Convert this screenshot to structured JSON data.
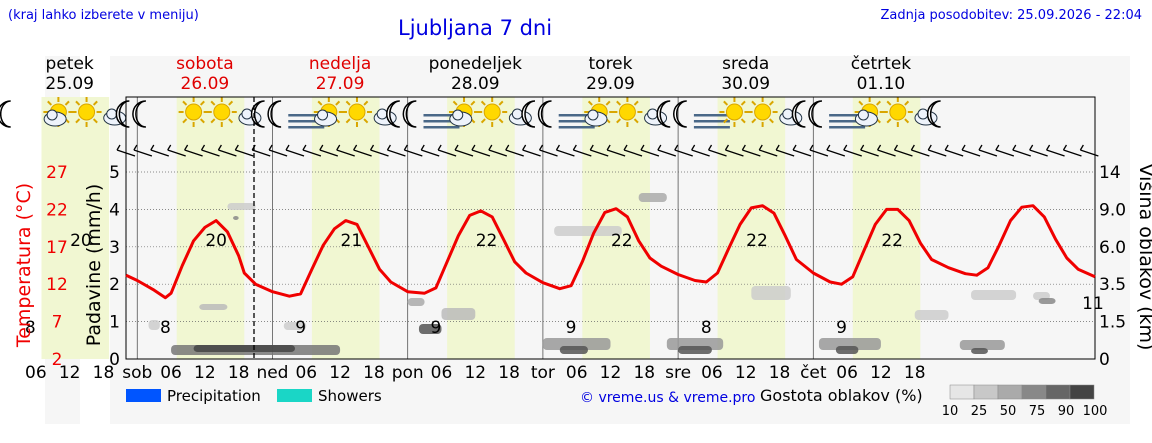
{
  "header": {
    "hint": "(kraj lahko izberete v meniju)",
    "title": "Ljubljana 7 dni",
    "updated": "Zadnja posodobitev: 25.09.2026 - 22:04"
  },
  "days": [
    {
      "name": "petek",
      "date": "25.09",
      "color": "#000000",
      "short": "",
      "tmin": "8",
      "tmax": "20"
    },
    {
      "name": "sobota",
      "date": "26.09",
      "color": "#e00000",
      "short": "sob",
      "tmin": "8",
      "tmax": "20"
    },
    {
      "name": "nedelja",
      "date": "27.09",
      "color": "#e00000",
      "short": "ned",
      "tmin": "9",
      "tmax": "21"
    },
    {
      "name": "ponedeljek",
      "date": "28.09",
      "color": "#000000",
      "short": "pon",
      "tmin": "9",
      "tmax": "22"
    },
    {
      "name": "torek",
      "date": "29.09",
      "color": "#000000",
      "short": "tor",
      "tmin": "9",
      "tmax": "22"
    },
    {
      "name": "sreda",
      "date": "30.09",
      "color": "#000000",
      "short": "sre",
      "tmin": "8",
      "tmax": "22"
    },
    {
      "name": "četrtek",
      "date": "01.10",
      "color": "#000000",
      "short": "čet",
      "tmin": "9",
      "tmax": "22"
    }
  ],
  "end_label": "11",
  "hour_labels": [
    "06",
    "12",
    "18"
  ],
  "legend": {
    "precip": "Precipitation",
    "showers": "Showers",
    "precip_color": "#0055ff",
    "showers_color": "#1ad6c6",
    "credit": "© vreme.us & vreme.pro",
    "density_label": "Gostota oblakov (%)",
    "density_scale": [
      "10",
      "25",
      "50",
      "75",
      "90",
      "100"
    ]
  },
  "chart_data": {
    "type": "line",
    "title": "Ljubljana 7 dni",
    "temperature_axis": {
      "label": "Temperatura (°C)",
      "ticks": [
        "2",
        "7",
        "12",
        "17",
        "22",
        "27"
      ],
      "range": [
        2,
        27
      ]
    },
    "precip_axis": {
      "label": "Padavine (mm/h)",
      "ticks": [
        "0",
        "1",
        "2",
        "3",
        "4",
        "5"
      ],
      "range": [
        0,
        5
      ]
    },
    "cloud_axis": {
      "label": "Višina oblakov (km)",
      "ticks": [
        "0",
        "1.5",
        "3.5",
        "6.0",
        "9.0",
        "14"
      ]
    },
    "x_hours": [
      0,
      6,
      12,
      18
    ],
    "series": [
      {
        "name": "Temperatura",
        "color": "#f00000",
        "points": [
          [
            22,
            13.2
          ],
          [
            24,
            12.5
          ],
          [
            27,
            11.2
          ],
          [
            29,
            10.2
          ],
          [
            30,
            10.8
          ],
          [
            32,
            14.5
          ],
          [
            34,
            17.8
          ],
          [
            36,
            19.6
          ],
          [
            38,
            20.5
          ],
          [
            40,
            19.0
          ],
          [
            42,
            15.8
          ],
          [
            43,
            13.5
          ],
          [
            45,
            12.0
          ],
          [
            48,
            11.0
          ],
          [
            51,
            10.4
          ],
          [
            53,
            10.7
          ],
          [
            55,
            14.0
          ],
          [
            57,
            17.2
          ],
          [
            59,
            19.4
          ],
          [
            61,
            20.5
          ],
          [
            63,
            20.0
          ],
          [
            65,
            17.0
          ],
          [
            67,
            14.0
          ],
          [
            69,
            12.3
          ],
          [
            72,
            11.0
          ],
          [
            75,
            10.8
          ],
          [
            77,
            11.5
          ],
          [
            79,
            15.0
          ],
          [
            81,
            18.5
          ],
          [
            83,
            21.2
          ],
          [
            85,
            21.8
          ],
          [
            87,
            21.0
          ],
          [
            89,
            18.0
          ],
          [
            91,
            15.0
          ],
          [
            93,
            13.5
          ],
          [
            96,
            12.2
          ],
          [
            99,
            11.4
          ],
          [
            101,
            11.8
          ],
          [
            103,
            15.0
          ],
          [
            105,
            18.8
          ],
          [
            107,
            21.6
          ],
          [
            109,
            22.1
          ],
          [
            111,
            21.0
          ],
          [
            113,
            17.8
          ],
          [
            115,
            15.5
          ],
          [
            117,
            14.4
          ],
          [
            120,
            13.3
          ],
          [
            123,
            12.5
          ],
          [
            125,
            12.3
          ],
          [
            127,
            13.5
          ],
          [
            129,
            16.8
          ],
          [
            131,
            20.0
          ],
          [
            133,
            22.2
          ],
          [
            135,
            22.5
          ],
          [
            137,
            21.5
          ],
          [
            139,
            18.5
          ],
          [
            141,
            15.3
          ],
          [
            144,
            13.5
          ],
          [
            147,
            12.3
          ],
          [
            149,
            12.0
          ],
          [
            151,
            13.0
          ],
          [
            153,
            16.5
          ],
          [
            155,
            20.0
          ],
          [
            157,
            22.0
          ],
          [
            159,
            22.0
          ],
          [
            161,
            20.5
          ],
          [
            163,
            17.5
          ],
          [
            165,
            15.3
          ],
          [
            168,
            14.2
          ],
          [
            171,
            13.4
          ],
          [
            173,
            13.2
          ],
          [
            175,
            14.2
          ],
          [
            177,
            17.2
          ],
          [
            179,
            20.5
          ],
          [
            181,
            22.3
          ],
          [
            183,
            22.5
          ],
          [
            185,
            21.0
          ],
          [
            187,
            18.0
          ],
          [
            189,
            15.5
          ],
          [
            191,
            14.0
          ],
          [
            194,
            13.0
          ]
        ]
      }
    ],
    "annotations": [
      "8",
      "20",
      "8",
      "20",
      "9",
      "21",
      "9",
      "22",
      "9",
      "22",
      "8",
      "22",
      "9",
      "22",
      "11"
    ]
  }
}
